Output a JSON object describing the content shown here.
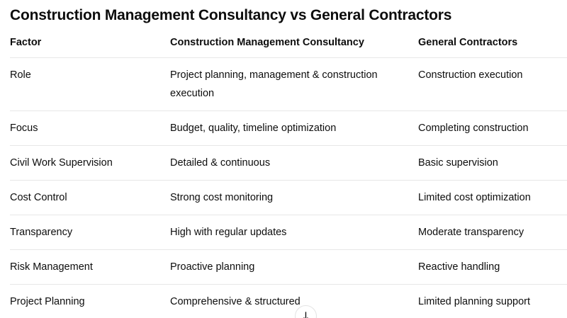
{
  "title": "Construction Management Consultancy vs General Contractors",
  "table": {
    "headers": [
      "Factor",
      "Construction Management Consultancy",
      "General Contractors"
    ],
    "rows": [
      [
        "Role",
        "Project planning, management & construction execution",
        "Construction execution"
      ],
      [
        "Focus",
        "Budget, quality, timeline optimization",
        "Completing construction"
      ],
      [
        "Civil Work Supervision",
        "Detailed & continuous",
        "Basic supervision"
      ],
      [
        "Cost Control",
        "Strong cost monitoring",
        "Limited cost optimization"
      ],
      [
        "Transparency",
        "High with regular updates",
        "Moderate transparency"
      ],
      [
        "Risk Management",
        "Proactive planning",
        "Reactive handling"
      ],
      [
        "Project Planning",
        "Comprehensive & structured",
        "Limited planning support"
      ]
    ]
  },
  "scroll_button": {
    "icon": "↓"
  },
  "colors": {
    "text": "#0d0d0d",
    "divider": "#e7e7e7",
    "background": "#ffffff"
  }
}
